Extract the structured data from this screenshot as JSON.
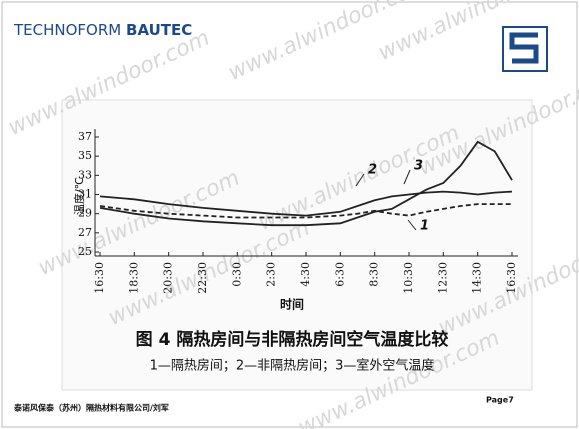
{
  "header": {
    "brand_light": "TECHNOFORM",
    "brand_bold": "BAUTEC"
  },
  "watermark": "www.alwindoor.com",
  "chart_data": {
    "type": "line",
    "x_label": "时间",
    "y_label": "温度/℃",
    "caption": "图 4    隔热房间与非隔热房间空气温度比较",
    "subcaption": "1—隔热房间；2—非隔热房间；3—室外空气温度",
    "annotations": [
      "1",
      "2",
      "3"
    ],
    "x": [
      0,
      2,
      4,
      6,
      8,
      10,
      12,
      14,
      15,
      16,
      17,
      18,
      19,
      20,
      21,
      22,
      23,
      24
    ],
    "xlim": [
      0,
      24
    ],
    "xticks": [
      {
        "value": 0,
        "label": "16:30"
      },
      {
        "value": 2,
        "label": "18:30"
      },
      {
        "value": 4,
        "label": "20:30"
      },
      {
        "value": 6,
        "label": "22:30"
      },
      {
        "value": 8,
        "label": "0:30"
      },
      {
        "value": 10,
        "label": "2:30"
      },
      {
        "value": 12,
        "label": "4:30"
      },
      {
        "value": 14,
        "label": "6:30"
      },
      {
        "value": 16,
        "label": "8:30"
      },
      {
        "value": 18,
        "label": "10:30"
      },
      {
        "value": 20,
        "label": "12:30"
      },
      {
        "value": 22,
        "label": "14:30"
      },
      {
        "value": 24,
        "label": "16:30"
      }
    ],
    "ylim": [
      25,
      37
    ],
    "yticks": [
      25,
      27,
      29,
      31,
      33,
      35,
      37
    ],
    "series": [
      {
        "name": "1",
        "color": "#222222",
        "dash": true,
        "values": [
          29.8,
          29.3,
          29.0,
          28.8,
          28.6,
          28.6,
          28.6,
          28.8,
          29.0,
          29.3,
          29.0,
          28.8,
          29.2,
          29.5,
          29.8,
          30.0,
          30.0,
          30.0
        ]
      },
      {
        "name": "2",
        "color": "#222222",
        "dash": false,
        "values": [
          30.8,
          30.5,
          30.0,
          29.6,
          29.3,
          29.0,
          28.8,
          29.2,
          29.8,
          30.4,
          30.8,
          31.0,
          31.2,
          31.3,
          31.2,
          31.0,
          31.2,
          31.3
        ]
      },
      {
        "name": "3",
        "color": "#222222",
        "dash": false,
        "values": [
          29.6,
          29.0,
          28.5,
          28.2,
          28.0,
          27.8,
          27.8,
          28.0,
          28.6,
          29.2,
          29.5,
          30.5,
          31.5,
          32.2,
          34.0,
          36.5,
          35.5,
          32.5
        ]
      }
    ],
    "grid": false
  },
  "footer": {
    "left": "泰诺风保泰（苏州）隔热材料有限公司/刘军",
    "right": "Page7"
  }
}
